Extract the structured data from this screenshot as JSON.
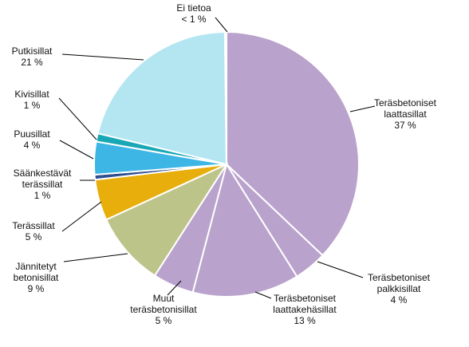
{
  "chart_data": {
    "type": "pie",
    "title": "",
    "start_angle_deg": 0,
    "direction": "clockwise",
    "slices": [
      {
        "key": "laattasillat",
        "label_lines": [
          "Teräsbetoniset",
          "laattasillat",
          "37 %"
        ],
        "value": 37,
        "display": "37 %",
        "color": "#B9A2CC"
      },
      {
        "key": "palkkisillat",
        "label_lines": [
          "Teräsbetoniset",
          "palkkisillat",
          "4 %"
        ],
        "value": 4,
        "display": "4 %",
        "color": "#B9A2CC"
      },
      {
        "key": "laattakehasillat",
        "label_lines": [
          "Teräsbetoniset",
          "laattakehäsillat",
          "13 %"
        ],
        "value": 13,
        "display": "13 %",
        "color": "#B9A2CC"
      },
      {
        "key": "muut-terasbetonisillat",
        "label_lines": [
          "Muut",
          "teräsbetonisillat",
          "5 %"
        ],
        "value": 5,
        "display": "5 %",
        "color": "#B9A2CC"
      },
      {
        "key": "jannitetyt-betonisillat",
        "label_lines": [
          "Jännitetyt",
          "betonisillat",
          "9 %"
        ],
        "value": 9,
        "display": "9 %",
        "color": "#BDC48A"
      },
      {
        "key": "terassillat",
        "label_lines": [
          "Terässillat",
          "5 %"
        ],
        "value": 5,
        "display": "5 %",
        "color": "#E8AE0B"
      },
      {
        "key": "saankestavat-terassillat",
        "label_lines": [
          "Säänkestävät",
          "terässillat",
          "1 %"
        ],
        "value": 0.6,
        "display": "1 %",
        "color": "#2E4F8F"
      },
      {
        "key": "puusillat",
        "label_lines": [
          "Puusillat",
          "4 %"
        ],
        "value": 4,
        "display": "4 %",
        "color": "#3DB6E5"
      },
      {
        "key": "kivisillat",
        "label_lines": [
          "Kivisillat",
          "1 %"
        ],
        "value": 1,
        "display": "1 %",
        "color": "#18A7B5"
      },
      {
        "key": "putkisillat",
        "label_lines": [
          "Putkisillat",
          "21 %"
        ],
        "value": 21,
        "display": "21 %",
        "color": "#B3E6F1"
      },
      {
        "key": "ei-tietoa",
        "label_lines": [
          "Ei tietoa",
          "< 1 %"
        ],
        "value": 0.2,
        "display": "< 1 %",
        "color": "#D9D9D9"
      }
    ]
  }
}
